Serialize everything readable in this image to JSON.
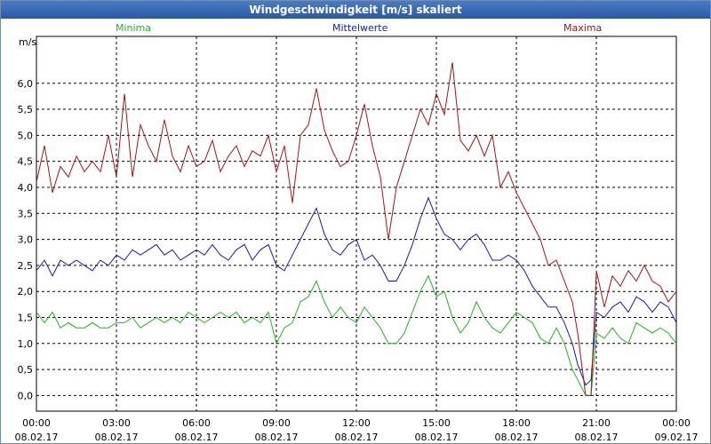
{
  "chart_data": {
    "type": "line",
    "title": "Windgeschwindigkeit [m/s] skaliert",
    "ylabel": "m/s",
    "ylim": [
      -0.3,
      6.9
    ],
    "y_ticks": [
      "0,0",
      "0,5",
      "1,0",
      "1,5",
      "2,0",
      "2,5",
      "3,0",
      "3,5",
      "4,0",
      "4,5",
      "5,0",
      "5,5",
      "6,0"
    ],
    "y_tick_values": [
      0,
      0.5,
      1,
      1.5,
      2,
      2.5,
      3,
      3.5,
      4,
      4.5,
      5,
      5.5,
      6
    ],
    "xlim": [
      0,
      24
    ],
    "x_ticks": [
      {
        "value": 0,
        "time": "00:00",
        "date": "08.02.17"
      },
      {
        "value": 3,
        "time": "03:00",
        "date": "08.02.17"
      },
      {
        "value": 6,
        "time": "06:00",
        "date": "08.02.17"
      },
      {
        "value": 9,
        "time": "09:00",
        "date": "08.02.17"
      },
      {
        "value": 12,
        "time": "12:00",
        "date": "08.02.17"
      },
      {
        "value": 15,
        "time": "15:00",
        "date": "08.02.17"
      },
      {
        "value": 18,
        "time": "18:00",
        "date": "08.02.17"
      },
      {
        "value": 21,
        "time": "21:00",
        "date": "08.02.17"
      },
      {
        "value": 24,
        "time": "00:00",
        "date": "09.02.17"
      }
    ],
    "series": [
      {
        "name": "Minima",
        "color": "#1fb51f",
        "points": [
          [
            0,
            1.6
          ],
          [
            0.3,
            1.4
          ],
          [
            0.6,
            1.6
          ],
          [
            0.9,
            1.3
          ],
          [
            1.2,
            1.4
          ],
          [
            1.5,
            1.3
          ],
          [
            1.8,
            1.3
          ],
          [
            2.1,
            1.4
          ],
          [
            2.4,
            1.3
          ],
          [
            2.7,
            1.3
          ],
          [
            3,
            1.4
          ],
          [
            3.3,
            1.4
          ],
          [
            3.6,
            1.5
          ],
          [
            3.9,
            1.3
          ],
          [
            4.2,
            1.4
          ],
          [
            4.5,
            1.5
          ],
          [
            4.8,
            1.4
          ],
          [
            5.1,
            1.5
          ],
          [
            5.4,
            1.4
          ],
          [
            5.7,
            1.6
          ],
          [
            6,
            1.5
          ],
          [
            6.3,
            1.4
          ],
          [
            6.6,
            1.5
          ],
          [
            6.9,
            1.6
          ],
          [
            7.2,
            1.5
          ],
          [
            7.5,
            1.6
          ],
          [
            7.8,
            1.4
          ],
          [
            8.1,
            1.5
          ],
          [
            8.4,
            1.4
          ],
          [
            8.7,
            1.6
          ],
          [
            9,
            1.0
          ],
          [
            9.3,
            1.3
          ],
          [
            9.6,
            1.4
          ],
          [
            9.9,
            1.8
          ],
          [
            10.2,
            1.9
          ],
          [
            10.5,
            2.2
          ],
          [
            10.8,
            1.8
          ],
          [
            11.1,
            1.5
          ],
          [
            11.4,
            1.7
          ],
          [
            11.7,
            1.5
          ],
          [
            12,
            1.4
          ],
          [
            12.3,
            1.7
          ],
          [
            12.6,
            1.5
          ],
          [
            12.9,
            1.3
          ],
          [
            13.2,
            1.0
          ],
          [
            13.5,
            1.0
          ],
          [
            13.8,
            1.2
          ],
          [
            14.1,
            1.6
          ],
          [
            14.4,
            2.0
          ],
          [
            14.7,
            2.3
          ],
          [
            15,
            1.9
          ],
          [
            15.3,
            2.0
          ],
          [
            15.6,
            1.5
          ],
          [
            15.9,
            1.2
          ],
          [
            16.2,
            1.4
          ],
          [
            16.5,
            1.8
          ],
          [
            16.8,
            1.5
          ],
          [
            17.1,
            1.3
          ],
          [
            17.4,
            1.2
          ],
          [
            17.7,
            1.4
          ],
          [
            18,
            1.6
          ],
          [
            18.3,
            1.5
          ],
          [
            18.6,
            1.4
          ],
          [
            18.9,
            1.1
          ],
          [
            19.2,
            1.0
          ],
          [
            19.5,
            1.3
          ],
          [
            19.8,
            1.0
          ],
          [
            20.1,
            0.5
          ],
          [
            20.3,
            0.3
          ],
          [
            20.6,
            0.0
          ],
          [
            20.8,
            0.0
          ],
          [
            21,
            1.2
          ],
          [
            21.3,
            1.1
          ],
          [
            21.6,
            1.3
          ],
          [
            21.9,
            1.1
          ],
          [
            22.2,
            1.0
          ],
          [
            22.5,
            1.4
          ],
          [
            22.8,
            1.3
          ],
          [
            23.1,
            1.2
          ],
          [
            23.4,
            1.3
          ],
          [
            23.7,
            1.2
          ],
          [
            24,
            1.0
          ]
        ]
      },
      {
        "name": "Mittelwerte",
        "color": "#1a1aa6",
        "points": [
          [
            0,
            2.4
          ],
          [
            0.3,
            2.6
          ],
          [
            0.6,
            2.3
          ],
          [
            0.9,
            2.6
          ],
          [
            1.2,
            2.5
          ],
          [
            1.5,
            2.6
          ],
          [
            1.8,
            2.5
          ],
          [
            2.1,
            2.4
          ],
          [
            2.4,
            2.6
          ],
          [
            2.7,
            2.5
          ],
          [
            3,
            2.7
          ],
          [
            3.3,
            2.6
          ],
          [
            3.6,
            2.8
          ],
          [
            3.9,
            2.7
          ],
          [
            4.2,
            2.8
          ],
          [
            4.5,
            2.9
          ],
          [
            4.8,
            2.7
          ],
          [
            5.1,
            2.8
          ],
          [
            5.4,
            2.6
          ],
          [
            5.7,
            2.7
          ],
          [
            6,
            2.8
          ],
          [
            6.3,
            2.7
          ],
          [
            6.6,
            2.9
          ],
          [
            6.9,
            2.7
          ],
          [
            7.2,
            2.6
          ],
          [
            7.5,
            2.8
          ],
          [
            7.8,
            2.9
          ],
          [
            8.1,
            2.6
          ],
          [
            8.4,
            2.8
          ],
          [
            8.7,
            2.9
          ],
          [
            9,
            2.5
          ],
          [
            9.3,
            2.4
          ],
          [
            9.6,
            2.7
          ],
          [
            9.9,
            3.0
          ],
          [
            10.2,
            3.3
          ],
          [
            10.5,
            3.6
          ],
          [
            10.8,
            3.1
          ],
          [
            11.1,
            2.8
          ],
          [
            11.4,
            2.7
          ],
          [
            11.7,
            2.9
          ],
          [
            12,
            3.0
          ],
          [
            12.3,
            2.6
          ],
          [
            12.6,
            2.7
          ],
          [
            12.9,
            2.5
          ],
          [
            13.2,
            2.2
          ],
          [
            13.5,
            2.2
          ],
          [
            13.8,
            2.5
          ],
          [
            14.1,
            2.9
          ],
          [
            14.4,
            3.4
          ],
          [
            14.7,
            3.8
          ],
          [
            15,
            3.4
          ],
          [
            15.3,
            3.1
          ],
          [
            15.6,
            3.0
          ],
          [
            15.9,
            2.8
          ],
          [
            16.2,
            3.0
          ],
          [
            16.5,
            3.1
          ],
          [
            16.8,
            2.9
          ],
          [
            17.1,
            2.6
          ],
          [
            17.4,
            2.6
          ],
          [
            17.7,
            2.7
          ],
          [
            18,
            2.6
          ],
          [
            18.3,
            2.4
          ],
          [
            18.6,
            2.1
          ],
          [
            18.9,
            1.9
          ],
          [
            19.2,
            1.7
          ],
          [
            19.5,
            1.7
          ],
          [
            19.8,
            1.4
          ],
          [
            20.1,
            1.0
          ],
          [
            20.3,
            0.6
          ],
          [
            20.6,
            0.2
          ],
          [
            20.8,
            0.3
          ],
          [
            21,
            1.6
          ],
          [
            21.3,
            1.5
          ],
          [
            21.6,
            1.7
          ],
          [
            21.9,
            1.8
          ],
          [
            22.2,
            1.6
          ],
          [
            22.5,
            1.9
          ],
          [
            22.8,
            1.8
          ],
          [
            23.1,
            1.6
          ],
          [
            23.4,
            1.8
          ],
          [
            23.7,
            1.7
          ],
          [
            24,
            1.4
          ]
        ]
      },
      {
        "name": "Maxima",
        "color": "#a31515",
        "points": [
          [
            0,
            4.1
          ],
          [
            0.3,
            4.8
          ],
          [
            0.6,
            3.9
          ],
          [
            0.9,
            4.4
          ],
          [
            1.2,
            4.2
          ],
          [
            1.5,
            4.6
          ],
          [
            1.8,
            4.3
          ],
          [
            2.1,
            4.5
          ],
          [
            2.4,
            4.3
          ],
          [
            2.7,
            5.0
          ],
          [
            3,
            4.2
          ],
          [
            3.3,
            5.8
          ],
          [
            3.6,
            4.2
          ],
          [
            3.9,
            5.2
          ],
          [
            4.2,
            4.8
          ],
          [
            4.5,
            4.5
          ],
          [
            4.8,
            5.3
          ],
          [
            5.1,
            4.6
          ],
          [
            5.4,
            4.3
          ],
          [
            5.7,
            4.8
          ],
          [
            6,
            4.4
          ],
          [
            6.3,
            4.5
          ],
          [
            6.6,
            4.9
          ],
          [
            6.9,
            4.3
          ],
          [
            7.2,
            4.6
          ],
          [
            7.5,
            4.8
          ],
          [
            7.8,
            4.4
          ],
          [
            8.1,
            4.7
          ],
          [
            8.4,
            4.6
          ],
          [
            8.7,
            5.0
          ],
          [
            9,
            4.3
          ],
          [
            9.3,
            4.8
          ],
          [
            9.6,
            3.7
          ],
          [
            9.9,
            5.0
          ],
          [
            10.2,
            5.2
          ],
          [
            10.5,
            5.9
          ],
          [
            10.8,
            5.1
          ],
          [
            11.1,
            4.7
          ],
          [
            11.4,
            4.4
          ],
          [
            11.7,
            4.5
          ],
          [
            12,
            5.0
          ],
          [
            12.3,
            5.6
          ],
          [
            12.6,
            4.8
          ],
          [
            12.9,
            4.2
          ],
          [
            13.2,
            3.0
          ],
          [
            13.5,
            4.0
          ],
          [
            13.8,
            4.5
          ],
          [
            14.1,
            5.0
          ],
          [
            14.4,
            5.5
          ],
          [
            14.7,
            5.2
          ],
          [
            15,
            5.8
          ],
          [
            15.3,
            5.4
          ],
          [
            15.6,
            6.4
          ],
          [
            15.9,
            4.9
          ],
          [
            16.2,
            4.7
          ],
          [
            16.5,
            5.0
          ],
          [
            16.8,
            4.6
          ],
          [
            17.1,
            5.0
          ],
          [
            17.4,
            4.0
          ],
          [
            17.7,
            4.3
          ],
          [
            18,
            3.9
          ],
          [
            18.3,
            3.6
          ],
          [
            18.6,
            3.3
          ],
          [
            18.9,
            3.0
          ],
          [
            19.2,
            2.5
          ],
          [
            19.5,
            2.6
          ],
          [
            19.8,
            2.2
          ],
          [
            20.1,
            1.8
          ],
          [
            20.3,
            1.2
          ],
          [
            20.6,
            0.0
          ],
          [
            20.8,
            0.0
          ],
          [
            21,
            2.4
          ],
          [
            21.3,
            1.7
          ],
          [
            21.6,
            2.3
          ],
          [
            21.9,
            2.1
          ],
          [
            22.2,
            2.4
          ],
          [
            22.5,
            2.2
          ],
          [
            22.8,
            2.5
          ],
          [
            23.1,
            2.2
          ],
          [
            23.4,
            2.1
          ],
          [
            23.7,
            1.8
          ],
          [
            24,
            2.0
          ]
        ]
      }
    ]
  }
}
